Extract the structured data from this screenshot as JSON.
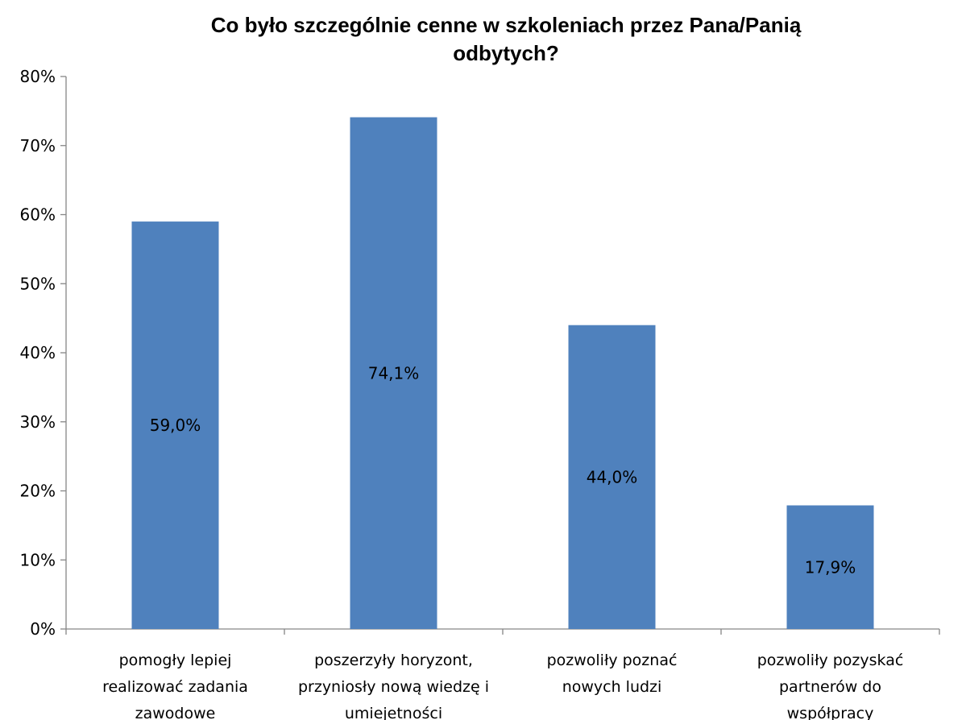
{
  "chart_data": {
    "type": "bar",
    "title_lines": [
      "Co było szczególnie cenne w szkoleniach przez Pana/Panią",
      "odbytych?"
    ],
    "categories": [
      [
        "pomogły lepiej",
        "realizować zadania",
        "zawodowe"
      ],
      [
        "poszerzyły horyzont,",
        "przyniosły nową wiedzę i",
        "umiejetności"
      ],
      [
        "pozwoliły poznać",
        "nowych ludzi"
      ],
      [
        "pozwoliły pozyskać",
        "partnerów do",
        "współpracy"
      ]
    ],
    "values": [
      59.0,
      74.1,
      44.0,
      17.9
    ],
    "value_labels": [
      "59,0%",
      "74,1%",
      "44,0%",
      "17,9%"
    ],
    "y_ticks": [
      "0%",
      "10%",
      "20%",
      "30%",
      "40%",
      "50%",
      "60%",
      "70%",
      "80%"
    ],
    "ylim": [
      0,
      80
    ],
    "bar_color": "#4f81bd",
    "grid": false,
    "legend": "none"
  }
}
